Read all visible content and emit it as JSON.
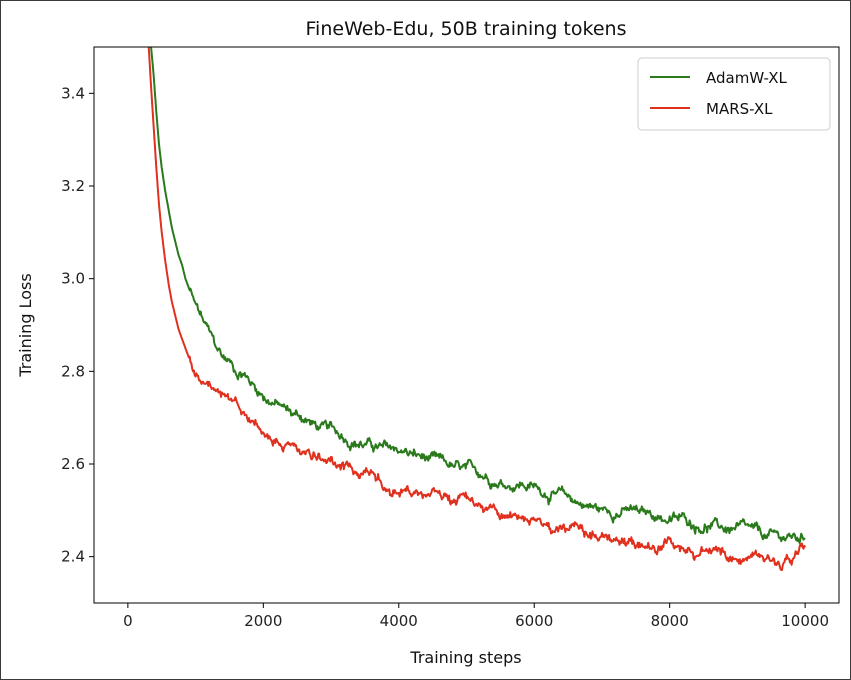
{
  "chart_data": {
    "type": "line",
    "title": "FineWeb-Edu, 50B training tokens",
    "xlabel": "Training steps",
    "ylabel": "Training Loss",
    "xlim": [
      -500,
      10500
    ],
    "ylim": [
      2.3,
      3.5
    ],
    "xticks": [
      0,
      2000,
      4000,
      6000,
      8000,
      10000
    ],
    "xtick_labels": [
      "0",
      "2000",
      "4000",
      "6000",
      "8000",
      "10000"
    ],
    "yticks": [
      2.4,
      2.6,
      2.8,
      3.0,
      3.2,
      3.4
    ],
    "ytick_labels": [
      "2.4",
      "2.6",
      "2.8",
      "3.0",
      "3.2",
      "3.4"
    ],
    "grid": false,
    "legend_position": "top-right",
    "series": [
      {
        "name": "AdamW-XL",
        "color": "#2a7a1c",
        "x": [
          330,
          380,
          420,
          460,
          500,
          550,
          600,
          650,
          700,
          750,
          800,
          850,
          900,
          950,
          1000,
          1100,
          1200,
          1300,
          1400,
          1500,
          1600,
          1700,
          1800,
          2000,
          2200,
          2400,
          2600,
          2800,
          3000,
          3200,
          3400,
          3600,
          3800,
          4000,
          4200,
          4400,
          4600,
          4800,
          5000,
          5200,
          5400,
          5600,
          5800,
          6000,
          6200,
          6400,
          6600,
          6800,
          7000,
          7200,
          7400,
          7600,
          7800,
          8000,
          8200,
          8400,
          8600,
          8800,
          9000,
          9200,
          9400,
          9600,
          9800,
          10000
        ],
        "values": [
          3.52,
          3.44,
          3.36,
          3.29,
          3.24,
          3.19,
          3.15,
          3.11,
          3.08,
          3.05,
          3.03,
          3.0,
          2.98,
          2.96,
          2.94,
          2.91,
          2.88,
          2.85,
          2.83,
          2.82,
          2.8,
          2.8,
          2.78,
          2.75,
          2.73,
          2.71,
          2.7,
          2.68,
          2.67,
          2.66,
          2.65,
          2.64,
          2.63,
          2.63,
          2.62,
          2.61,
          2.6,
          2.59,
          2.58,
          2.58,
          2.57,
          2.56,
          2.56,
          2.55,
          2.54,
          2.53,
          2.52,
          2.51,
          2.5,
          2.5,
          2.5,
          2.49,
          2.49,
          2.48,
          2.48,
          2.47,
          2.47,
          2.46,
          2.46,
          2.45,
          2.44,
          2.44,
          2.44,
          2.44
        ]
      },
      {
        "name": "MARS-XL",
        "color": "#e0301e",
        "x": [
          300,
          340,
          380,
          420,
          460,
          500,
          550,
          600,
          650,
          700,
          750,
          800,
          850,
          900,
          950,
          1000,
          1100,
          1200,
          1300,
          1400,
          1500,
          1600,
          1700,
          1800,
          2000,
          2200,
          2400,
          2600,
          2800,
          3000,
          3200,
          3400,
          3600,
          3800,
          4000,
          4200,
          4400,
          4600,
          4800,
          5000,
          5200,
          5400,
          5600,
          5800,
          6000,
          6200,
          6400,
          6600,
          6800,
          7000,
          7200,
          7400,
          7600,
          7800,
          8000,
          8200,
          8400,
          8600,
          8800,
          9000,
          9200,
          9400,
          9600,
          9800,
          10000
        ],
        "values": [
          3.52,
          3.42,
          3.33,
          3.24,
          3.16,
          3.1,
          3.04,
          2.99,
          2.95,
          2.92,
          2.89,
          2.87,
          2.85,
          2.83,
          2.81,
          2.8,
          2.77,
          2.76,
          2.74,
          2.73,
          2.72,
          2.71,
          2.7,
          2.69,
          2.67,
          2.65,
          2.64,
          2.62,
          2.61,
          2.6,
          2.59,
          2.58,
          2.57,
          2.56,
          2.55,
          2.54,
          2.54,
          2.53,
          2.52,
          2.52,
          2.51,
          2.5,
          2.49,
          2.48,
          2.48,
          2.47,
          2.46,
          2.45,
          2.44,
          2.44,
          2.43,
          2.43,
          2.42,
          2.42,
          2.42,
          2.41,
          2.41,
          2.41,
          2.41,
          2.4,
          2.4,
          2.4,
          2.4,
          2.4,
          2.42
        ]
      }
    ]
  }
}
